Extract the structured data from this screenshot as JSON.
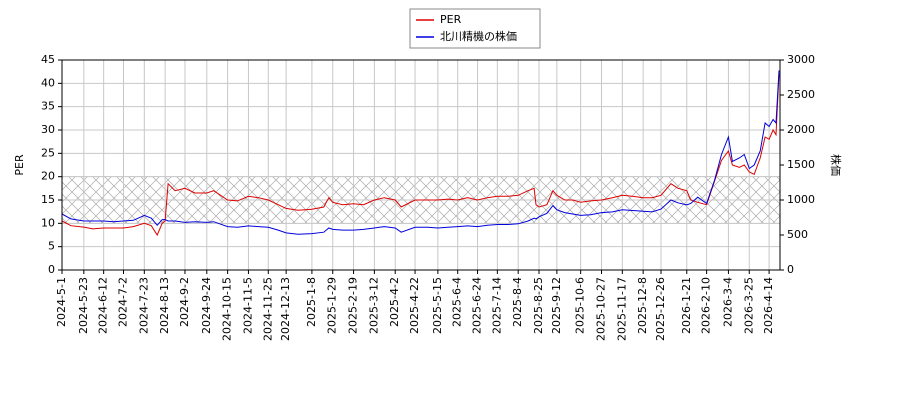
{
  "chart_data": {
    "type": "line",
    "legend": "upper center",
    "grid": true,
    "shaded_range": [
      10,
      20
    ],
    "ylabel": "PER",
    "y2label": "株価",
    "xlim": [
      "2024-5-1",
      "2026-4-25"
    ],
    "xticks": [
      "2024-5-1",
      "2024-5-23",
      "2024-6-12",
      "2024-7-2",
      "2024-7-23",
      "2024-8-13",
      "2024-9-2",
      "2024-9-24",
      "2024-10-15",
      "2024-11-5",
      "2024-11-25",
      "2024-12-13",
      "2025-1-8",
      "2025-1-29",
      "2025-2-19",
      "2025-3-12",
      "2025-4-2",
      "2025-4-22",
      "2025-5-15",
      "2025-6-4",
      "2025-6-24",
      "2025-7-14",
      "2025-8-4",
      "2025-8-25",
      "2025-9-12",
      "2025-10-6",
      "2025-10-27",
      "2025-11-17",
      "2025-12-8",
      "2025-12-26",
      "2026-1-21",
      "2026-2-10",
      "2026-3-4",
      "2026-3-25",
      "2026-4-14"
    ],
    "ylim": [
      0,
      45
    ],
    "yticks": [
      0,
      5,
      10,
      15,
      20,
      25,
      30,
      35,
      40,
      45
    ],
    "y2lim": [
      0,
      3000
    ],
    "y2ticks": [
      0,
      500,
      1000,
      1500,
      2000,
      2500,
      3000
    ],
    "x": [
      "2024-5-1",
      "2024-5-10",
      "2024-5-23",
      "2024-6-1",
      "2024-6-12",
      "2024-6-22",
      "2024-7-2",
      "2024-7-12",
      "2024-7-23",
      "2024-7-30",
      "2024-8-5",
      "2024-8-10",
      "2024-8-13",
      "2024-8-16",
      "2024-8-23",
      "2024-9-2",
      "2024-9-12",
      "2024-9-24",
      "2024-10-1",
      "2024-10-15",
      "2024-10-25",
      "2024-11-5",
      "2024-11-15",
      "2024-11-25",
      "2024-12-5",
      "2024-12-13",
      "2024-12-25",
      "2025-1-8",
      "2025-1-20",
      "2025-1-25",
      "2025-1-29",
      "2025-2-8",
      "2025-2-19",
      "2025-3-1",
      "2025-3-12",
      "2025-3-22",
      "2025-4-2",
      "2025-4-8",
      "2025-4-22",
      "2025-5-5",
      "2025-5-15",
      "2025-5-25",
      "2025-6-4",
      "2025-6-14",
      "2025-6-24",
      "2025-7-4",
      "2025-7-14",
      "2025-7-24",
      "2025-8-4",
      "2025-8-14",
      "2025-8-20",
      "2025-8-22",
      "2025-8-25",
      "2025-9-2",
      "2025-9-8",
      "2025-9-12",
      "2025-9-20",
      "2025-9-28",
      "2025-10-6",
      "2025-10-16",
      "2025-10-27",
      "2025-11-7",
      "2025-11-17",
      "2025-11-27",
      "2025-12-8",
      "2025-12-17",
      "2025-12-26",
      "2026-1-5",
      "2026-1-12",
      "2026-1-21",
      "2026-1-25",
      "2026-2-1",
      "2026-2-10",
      "2026-2-18",
      "2026-2-25",
      "2026-3-4",
      "2026-3-8",
      "2026-3-15",
      "2026-3-20",
      "2026-3-25",
      "2026-3-30",
      "2026-4-5",
      "2026-4-10",
      "2026-4-14",
      "2026-4-18",
      "2026-4-21",
      "2026-4-24"
    ],
    "series": [
      {
        "name": "PER",
        "color": "#dd0000",
        "values": [
          10.5,
          9.5,
          9.2,
          8.8,
          9.0,
          9.0,
          9.0,
          9.3,
          10.0,
          9.5,
          7.5,
          10,
          10.5,
          18.5,
          17,
          17.5,
          16.5,
          16.5,
          17.0,
          15,
          14.8,
          15.8,
          15.5,
          15.0,
          14,
          13.2,
          12.8,
          13.0,
          13.5,
          15.5,
          14.5,
          14.0,
          14.2,
          14,
          15.0,
          15.5,
          15.0,
          13.5,
          15.0,
          15.0,
          15.0,
          15.2,
          15.0,
          15.5,
          15.0,
          15.5,
          15.8,
          15.8,
          16.0,
          17,
          17.5,
          14,
          13.5,
          14.0,
          17.0,
          16.0,
          15,
          15.0,
          14.5,
          14.8,
          15.0,
          15.5,
          16.0,
          15.8,
          15.5,
          15.5,
          16.0,
          18.5,
          17.5,
          17.0,
          15,
          14.5,
          14.0,
          19.0,
          23.5,
          25.5,
          22.5,
          22.0,
          22.5,
          21,
          20.5,
          24,
          28.5,
          28,
          30,
          29,
          42
        ]
      },
      {
        "name": "北川精機の株価",
        "color": "#0000dd",
        "axis": "y2",
        "values": [
          800,
          730,
          700,
          700,
          700,
          690,
          700,
          710,
          780,
          740,
          640,
          720,
          720,
          700,
          700,
          680,
          690,
          680,
          690,
          620,
          610,
          630,
          620,
          610,
          570,
          530,
          510,
          520,
          540,
          600,
          580,
          570,
          570,
          580,
          600,
          620,
          600,
          540,
          610,
          610,
          600,
          610,
          620,
          630,
          620,
          640,
          650,
          650,
          660,
          700,
          740,
          730,
          760,
          810,
          920,
          860,
          820,
          800,
          780,
          790,
          820,
          830,
          860,
          850,
          840,
          830,
          870,
          1000,
          960,
          930,
          950,
          1040,
          950,
          1280,
          1650,
          1900,
          1550,
          1600,
          1650,
          1450,
          1500,
          1700,
          2100,
          2050,
          2150,
          2100,
          2850
        ]
      }
    ]
  }
}
